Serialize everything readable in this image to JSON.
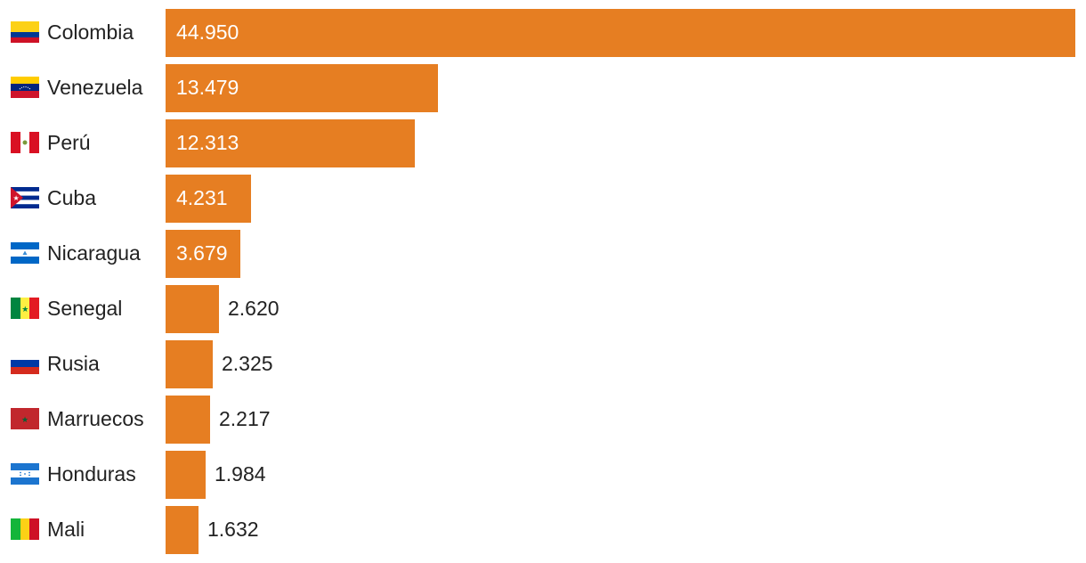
{
  "chart_data": {
    "type": "bar",
    "orientation": "horizontal",
    "categories": [
      "Colombia",
      "Venezuela",
      "Perú",
      "Cuba",
      "Nicaragua",
      "Senegal",
      "Rusia",
      "Marruecos",
      "Honduras",
      "Mali"
    ],
    "labels": [
      "44.950",
      "13.479",
      "12.313",
      "4.231",
      "3.679",
      "2.620",
      "2.325",
      "2.217",
      "1.984",
      "1.632"
    ],
    "values": [
      44950,
      13479,
      12313,
      4231,
      3679,
      2620,
      2325,
      2217,
      1984,
      1632
    ],
    "flag_icons": [
      "colombia-flag-icon",
      "venezuela-flag-icon",
      "peru-flag-icon",
      "cuba-flag-icon",
      "nicaragua-flag-icon",
      "senegal-flag-icon",
      "russia-flag-icon",
      "morocco-flag-icon",
      "honduras-flag-icon",
      "mali-flag-icon"
    ],
    "bar_color": "#e67e22",
    "xlim": [
      0,
      44950
    ],
    "grid": false,
    "legend": "none"
  }
}
